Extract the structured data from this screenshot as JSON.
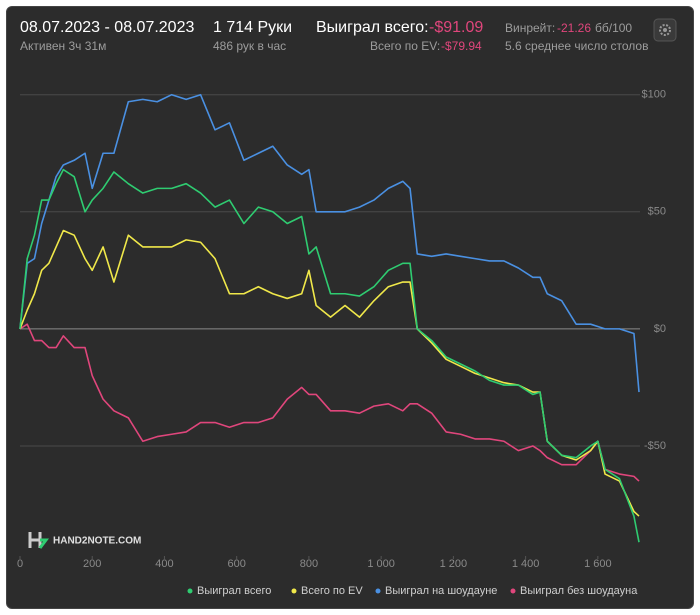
{
  "header": {
    "dates": "08.07.2023 - 08.07.2023",
    "active": "Активен 3ч 31м",
    "hands": "1 714 Руки",
    "hands_per_hour": "486 рук в час",
    "won_label": "Выиграл всего:",
    "won_value": "-$91.09",
    "ev_label": "Всего по EV:",
    "ev_value": "-$79.94",
    "winrate_label": "Винрейт:",
    "winrate_value": "-21.26",
    "winrate_unit": "бб/100",
    "tables": "5.6 среднее число столов"
  },
  "chart_data": {
    "type": "line",
    "watermark": "HAND2NOTE.COM",
    "grid": true,
    "x": [
      0,
      20,
      40,
      60,
      80,
      100,
      120,
      150,
      180,
      200,
      230,
      260,
      300,
      340,
      380,
      420,
      460,
      500,
      540,
      580,
      620,
      660,
      700,
      740,
      780,
      800,
      820,
      860,
      900,
      940,
      980,
      1020,
      1060,
      1080,
      1100,
      1140,
      1180,
      1220,
      1260,
      1300,
      1340,
      1380,
      1420,
      1440,
      1460,
      1500,
      1540,
      1580,
      1600,
      1620,
      1660,
      1700,
      1714
    ],
    "series": [
      {
        "name": "Выиграл всего",
        "color": "#2fcc71",
        "values": [
          0,
          30,
          40,
          55,
          55,
          62,
          68,
          65,
          50,
          55,
          60,
          67,
          62,
          58,
          60,
          60,
          62,
          58,
          52,
          55,
          45,
          52,
          50,
          45,
          48,
          32,
          35,
          15,
          15,
          14,
          18,
          25,
          28,
          28,
          0,
          -5,
          -12,
          -15,
          -18,
          -22,
          -24,
          -24,
          -28,
          -27,
          -48,
          -54,
          -55,
          -50,
          -48,
          -60,
          -64,
          -80,
          -91.09
        ]
      },
      {
        "name": "Всего по EV",
        "color": "#f0e84a",
        "values": [
          0,
          8,
          15,
          25,
          28,
          35,
          42,
          40,
          30,
          25,
          35,
          20,
          40,
          35,
          35,
          35,
          38,
          37,
          30,
          15,
          15,
          18,
          15,
          13,
          15,
          25,
          10,
          5,
          10,
          5,
          12,
          18,
          20,
          20,
          0,
          -6,
          -13,
          -16,
          -19,
          -21,
          -23,
          -24,
          -27,
          -27,
          -48,
          -54,
          -56,
          -52,
          -48,
          -62,
          -65,
          -78,
          -79.94
        ]
      },
      {
        "name": "Выиграл на шоудауне",
        "color": "#4a90e2",
        "values": [
          0,
          28,
          30,
          45,
          55,
          65,
          70,
          72,
          75,
          60,
          75,
          75,
          97,
          98,
          97,
          100,
          98,
          100,
          85,
          88,
          72,
          75,
          78,
          70,
          66,
          68,
          50,
          50,
          50,
          52,
          55,
          60,
          63,
          60,
          32,
          31,
          32,
          31,
          30,
          29,
          29,
          26,
          22,
          22,
          15,
          12,
          2,
          2,
          1,
          0,
          0,
          -2,
          -27
        ]
      },
      {
        "name": "Выиграл без шоудауна",
        "color": "#e0467c",
        "values": [
          0,
          2,
          -5,
          -5,
          -8,
          -8,
          -3,
          -8,
          -8,
          -20,
          -30,
          -35,
          -38,
          -48,
          -46,
          -45,
          -44,
          -40,
          -40,
          -42,
          -40,
          -40,
          -38,
          -30,
          -25,
          -28,
          -28,
          -35,
          -35,
          -36,
          -33,
          -32,
          -35,
          -32,
          -32,
          -36,
          -44,
          -45,
          -47,
          -47,
          -48,
          -52,
          -50,
          -52,
          -55,
          -58,
          -58,
          -52,
          -48,
          -60,
          -62,
          -63,
          -65
        ]
      }
    ],
    "xlim": [
      0,
      1714
    ],
    "xticks": [
      0,
      200,
      400,
      600,
      800,
      {
        "value": 1000,
        "label": "1 000"
      },
      {
        "value": 1200,
        "label": "1 200"
      },
      {
        "value": 1400,
        "label": "1 400"
      },
      {
        "value": 1600,
        "label": "1 600"
      }
    ],
    "ylim": [
      -97,
      105
    ],
    "yticks": [
      {
        "value": -50,
        "label": "-$50"
      },
      {
        "value": 0,
        "label": "$0"
      },
      {
        "value": 50,
        "label": "$50"
      },
      {
        "value": 100,
        "label": "$100"
      }
    ]
  }
}
